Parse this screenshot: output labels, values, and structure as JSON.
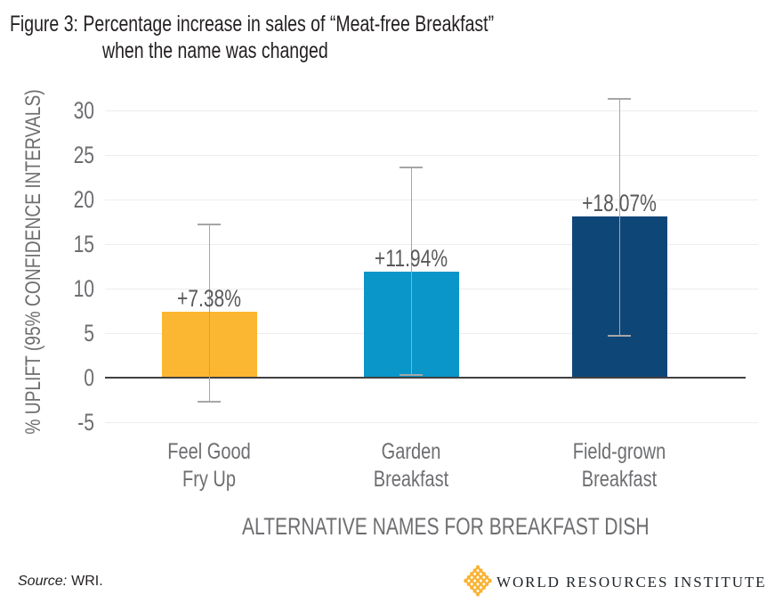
{
  "header": {
    "title_line1": "Figure 3: Percentage increase in sales of “Meat-free Breakfast”",
    "title_line2": "when the name was changed"
  },
  "chart_data": {
    "type": "bar",
    "title": "Figure 3: Percentage increase in sales of “Meat-free Breakfast” when the name was changed",
    "xlabel": "ALTERNATIVE NAMES FOR BREAKFAST DISH",
    "ylabel": "% UPLIFT (95% CONFIDENCE INTERVALS)",
    "categories": [
      "Feel Good Fry Up",
      "Garden Breakfast",
      "Field-grown Breakfast"
    ],
    "category_lines": [
      [
        "Feel Good",
        "Fry Up"
      ],
      [
        "Garden",
        "Breakfast"
      ],
      [
        "Field-grown",
        "Breakfast"
      ]
    ],
    "values": [
      7.38,
      11.94,
      18.07
    ],
    "value_labels": [
      "+7.38%",
      "+11.94%",
      "+18.07%"
    ],
    "error_bars": "95% confidence intervals",
    "ci_low": [
      -2.7,
      0.3,
      4.7
    ],
    "ci_high": [
      17.3,
      23.7,
      31.4
    ],
    "bar_colors": [
      "#FBB731",
      "#0A96C9",
      "#0F4678"
    ],
    "yticks": [
      30,
      25,
      20,
      15,
      10,
      5,
      0,
      -5
    ],
    "ylim": [
      -7.6,
      32.8
    ],
    "grid": true,
    "legend_position": "none"
  },
  "footer": {
    "source_label": "Source:",
    "source_value": "WRI.",
    "logo_name": "WORLD RESOURCES INSTITUTE"
  },
  "colors": {
    "bar_orange": "#FBB731",
    "bar_lightblue": "#0A96C9",
    "bar_navy": "#0F4678",
    "axis_text": "#6D6E71",
    "label_text": "#58595B",
    "title_text": "#231F20",
    "gridline": "#EDEDED",
    "zero_axis": "#414042",
    "error_bar": "#A6A6A6",
    "logo_yellow": "#F9B232",
    "logo_text": "#20262B"
  }
}
